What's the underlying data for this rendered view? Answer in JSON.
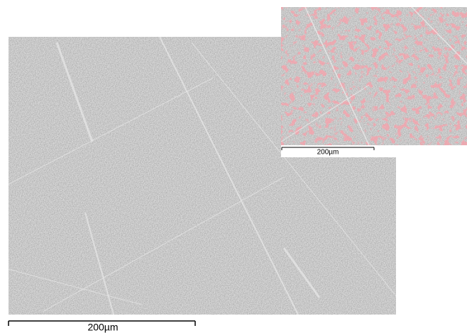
{
  "main_image": {
    "scale_bar_label": "200µm"
  },
  "inset_image": {
    "scale_bar_label": "200µm"
  }
}
